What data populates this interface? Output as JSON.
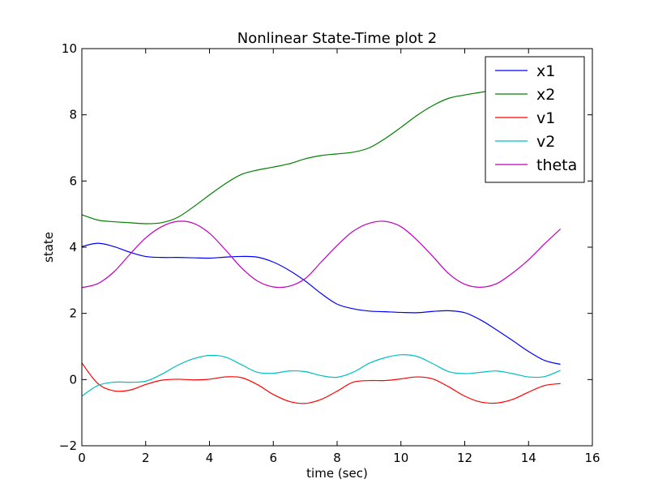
{
  "chart_data": {
    "type": "line",
    "title": "Nonlinear State-Time plot 2",
    "xlabel": "time (sec)",
    "ylabel": "state",
    "xlim": [
      0,
      16
    ],
    "ylim": [
      -2,
      10
    ],
    "xticks": [
      0,
      2,
      4,
      6,
      8,
      10,
      12,
      14,
      16
    ],
    "yticks": [
      -2,
      0,
      2,
      4,
      6,
      8,
      10
    ],
    "xtick_labels": [
      "0",
      "2",
      "4",
      "6",
      "8",
      "10",
      "12",
      "14",
      "16"
    ],
    "ytick_labels": [
      "−2",
      "0",
      "2",
      "4",
      "6",
      "8",
      "10"
    ],
    "grid": false,
    "legend_position": "top-right",
    "x": [
      0,
      0.5,
      1,
      1.5,
      2,
      2.5,
      3,
      3.5,
      4,
      4.5,
      5,
      5.5,
      6,
      6.5,
      7,
      7.5,
      8,
      8.5,
      9,
      9.5,
      10,
      10.5,
      11,
      11.5,
      12,
      12.5,
      13,
      13.5,
      14,
      14.5,
      15
    ],
    "series": [
      {
        "name": "x1",
        "color": "#0000ff",
        "values": [
          4.02,
          4.12,
          4.02,
          3.85,
          3.72,
          3.69,
          3.69,
          3.68,
          3.67,
          3.7,
          3.72,
          3.7,
          3.55,
          3.3,
          2.98,
          2.6,
          2.28,
          2.14,
          2.07,
          2.05,
          2.03,
          2.02,
          2.06,
          2.08,
          2.02,
          1.8,
          1.5,
          1.18,
          0.85,
          0.58,
          0.46
        ]
      },
      {
        "name": "x2",
        "color": "#008000",
        "values": [
          4.98,
          4.82,
          4.77,
          4.74,
          4.71,
          4.74,
          4.9,
          5.22,
          5.58,
          5.92,
          6.2,
          6.33,
          6.42,
          6.52,
          6.67,
          6.77,
          6.82,
          6.87,
          7.0,
          7.28,
          7.62,
          7.98,
          8.28,
          8.5,
          8.6,
          8.68,
          8.77,
          8.9,
          9.02,
          9.1,
          9.15
        ]
      },
      {
        "name": "v1",
        "color": "#ff0000",
        "values": [
          0.5,
          -0.12,
          -0.34,
          -0.32,
          -0.15,
          -0.02,
          0.01,
          -0.01,
          0.01,
          0.08,
          0.06,
          -0.15,
          -0.45,
          -0.66,
          -0.72,
          -0.6,
          -0.35,
          -0.08,
          -0.03,
          -0.03,
          0.02,
          0.08,
          0.02,
          -0.22,
          -0.5,
          -0.68,
          -0.71,
          -0.6,
          -0.38,
          -0.18,
          -0.12
        ]
      },
      {
        "name": "v2",
        "color": "#00bfbf",
        "values": [
          -0.5,
          -0.18,
          -0.08,
          -0.08,
          -0.05,
          0.16,
          0.43,
          0.63,
          0.73,
          0.68,
          0.45,
          0.22,
          0.19,
          0.26,
          0.24,
          0.12,
          0.07,
          0.22,
          0.49,
          0.66,
          0.75,
          0.7,
          0.48,
          0.24,
          0.18,
          0.22,
          0.26,
          0.18,
          0.08,
          0.09,
          0.28
        ]
      },
      {
        "name": "theta",
        "color": "#bf00bf",
        "values": [
          2.78,
          2.9,
          3.25,
          3.78,
          4.28,
          4.62,
          4.78,
          4.72,
          4.42,
          3.92,
          3.38,
          2.98,
          2.8,
          2.82,
          3.05,
          3.55,
          4.05,
          4.48,
          4.72,
          4.78,
          4.62,
          4.22,
          3.72,
          3.2,
          2.88,
          2.79,
          2.9,
          3.22,
          3.62,
          4.1,
          4.55
        ]
      }
    ]
  }
}
